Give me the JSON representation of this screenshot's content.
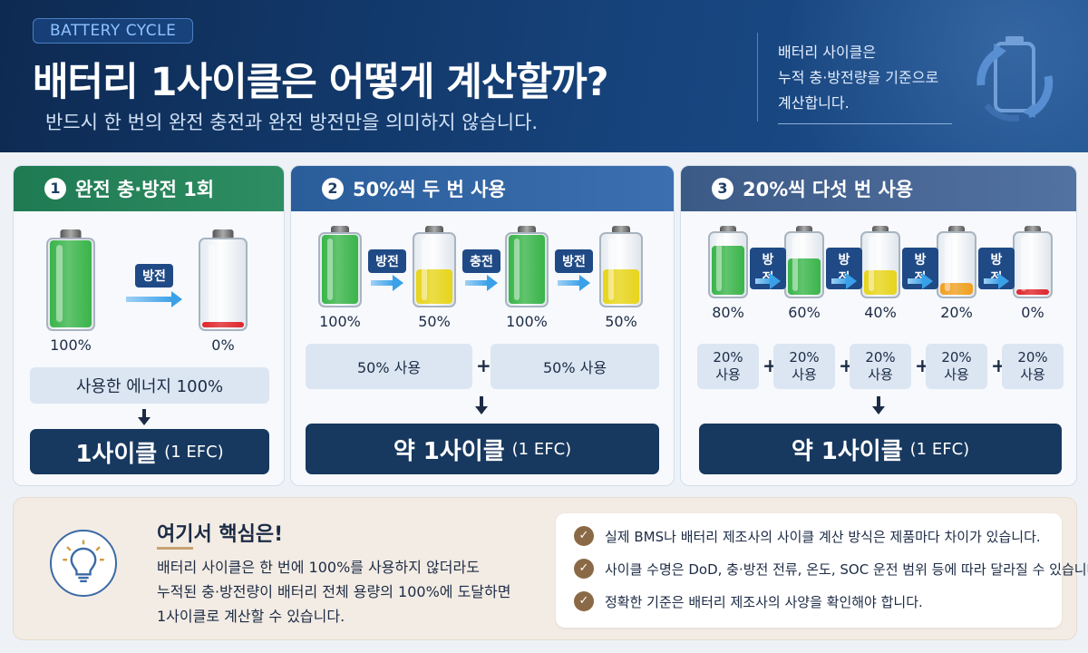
{
  "header": {
    "tag": "BATTERY CYCLE",
    "title": "배터리 1사이클은 어떻게 계산할까?",
    "subtitle": "반드시 한 번의 완전 충전과 완전 방전만을 의미하지 않습니다.",
    "side_note_line1": "배터리 사이클은",
    "side_note_line2": "누적 충·방전량을 기준으로",
    "side_note_line3": "계산합니다."
  },
  "cards": [
    {
      "number": "1",
      "title": "완전 충·방전 1회",
      "batteries": [
        {
          "level": 1.0,
          "color": "#3ab54a",
          "label": "100%"
        },
        {
          "level": 0.06,
          "color": "#e0262b",
          "label": "0%"
        }
      ],
      "actions": [
        "방전"
      ],
      "usage": [
        "사용한 에너지 100%"
      ],
      "result_main": "1사이클",
      "result_sub": "(1 EFC)"
    },
    {
      "number": "2",
      "title": "50%씩 두 번 사용",
      "batteries": [
        {
          "level": 1.0,
          "color": "#3ab54a",
          "label": "100%"
        },
        {
          "level": 0.5,
          "color": "#e8d51a",
          "label": "50%"
        },
        {
          "level": 1.0,
          "color": "#3ab54a",
          "label": "100%"
        },
        {
          "level": 0.5,
          "color": "#e8d51a",
          "label": "50%"
        }
      ],
      "actions": [
        "방전",
        "충전",
        "방전"
      ],
      "usage": [
        "50% 사용",
        "50% 사용"
      ],
      "result_main": "약 1사이클",
      "result_sub": "(1 EFC)"
    },
    {
      "number": "3",
      "title": "20%씩 다섯 번 사용",
      "batteries": [
        {
          "level": 0.8,
          "color": "#3ab54a",
          "label": "80%"
        },
        {
          "level": 0.6,
          "color": "#3ab54a",
          "label": "60%"
        },
        {
          "level": 0.4,
          "color": "#e8d51a",
          "label": "40%"
        },
        {
          "level": 0.2,
          "color": "#f0a020",
          "label": "20%"
        },
        {
          "level": 0.06,
          "color": "#e0262b",
          "label": "0%"
        }
      ],
      "actions": [
        "방전",
        "방전",
        "방전",
        "방전"
      ],
      "usage": [
        {
          "l1": "20%",
          "l2": "사용"
        },
        {
          "l1": "20%",
          "l2": "사용"
        },
        {
          "l1": "20%",
          "l2": "사용"
        },
        {
          "l1": "20%",
          "l2": "사용"
        },
        {
          "l1": "20%",
          "l2": "사용"
        }
      ],
      "plus": "+",
      "result_main": "약 1사이클",
      "result_sub": "(1 EFC)"
    }
  ],
  "key": {
    "title": "여기서 핵심은!",
    "line1": "배터리 사이클은 한 번에 100%를 사용하지 않더라도",
    "line2": "누적된 충·방전량이 배터리 전체 용량의 100%에 도달하면",
    "line3": "1사이클로 계산할 수 있습니다."
  },
  "notes": [
    "실제 BMS나 배터리 제조사의 사이클 계산 방식은 제품마다 차이가 있습니다.",
    "사이클 수명은 DoD, 충·방전 전류, 온도, SOC 운전 범위 등에 따라 달라질 수 있습니다.",
    "정확한 기준은 배터리 제조사의 사양을 확인해야 합니다."
  ],
  "icons": {
    "cycle": "battery-cycle-icon",
    "bulb": "lightbulb-icon",
    "check": "check-icon"
  }
}
